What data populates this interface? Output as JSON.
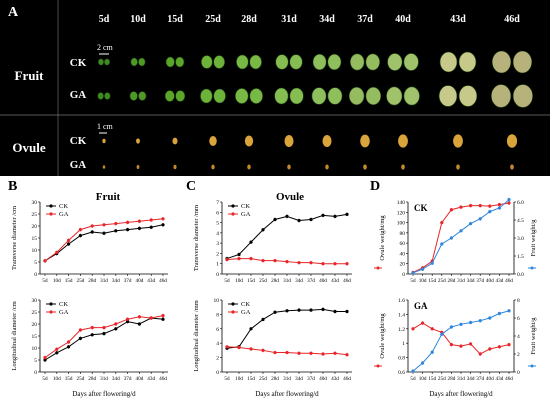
{
  "panelA": {
    "letter": "A",
    "days": [
      "5d",
      "10d",
      "15d",
      "25d",
      "28d",
      "31d",
      "34d",
      "37d",
      "40d",
      "43d",
      "46d"
    ],
    "section_fruit": "Fruit",
    "section_ovule": "Ovule",
    "row_labels": [
      "CK",
      "GA",
      "CK",
      "GA"
    ],
    "scale_fruit": "2 cm",
    "scale_ovule": "1 cm"
  },
  "panelB": {
    "letter": "B",
    "title": "Fruit"
  },
  "panelC": {
    "letter": "C",
    "title": "Ovule"
  },
  "panelD": {
    "letter": "D"
  },
  "colors": {
    "CK": "#000000",
    "GA": "#e8262a",
    "fruit_weight": "#2e86de"
  },
  "chart_data": [
    {
      "id": "B-top",
      "panel": "B",
      "type": "line",
      "categories": [
        "5d",
        "10d",
        "15d",
        "25d",
        "28d",
        "31d",
        "34d",
        "37d",
        "40d",
        "43d",
        "46d"
      ],
      "ylabel": "Transverse diameter /cm",
      "ylim": [
        0,
        30
      ],
      "yticks": [
        0,
        5,
        10,
        15,
        20,
        25,
        30
      ],
      "series": [
        {
          "name": "CK",
          "values": [
            5.5,
            8.5,
            12.5,
            16,
            17.5,
            17,
            18,
            18.5,
            19,
            19.5,
            20.5
          ]
        },
        {
          "name": "GA",
          "values": [
            5.5,
            9,
            14,
            18.5,
            20,
            20.5,
            21,
            21.5,
            22,
            22.5,
            23
          ]
        }
      ],
      "legend": "top-left"
    },
    {
      "id": "B-bottom",
      "panel": "B",
      "type": "line",
      "categories": [
        "5d",
        "10d",
        "15d",
        "25d",
        "28d",
        "31d",
        "34d",
        "37d",
        "40d",
        "43d",
        "46d"
      ],
      "xlabel": "Days after flowering/d",
      "ylabel": "Longitudinal diameter /cm",
      "ylim": [
        0,
        30
      ],
      "yticks": [
        0,
        5,
        10,
        15,
        20,
        25,
        30
      ],
      "series": [
        {
          "name": "CK",
          "values": [
            5,
            8,
            10.5,
            14,
            15.5,
            16,
            18,
            21,
            20,
            22.5,
            22
          ]
        },
        {
          "name": "GA",
          "values": [
            6,
            9.5,
            12.5,
            17.5,
            18.5,
            18.5,
            20,
            22,
            23,
            22.5,
            23.5
          ]
        }
      ],
      "legend": "top-left"
    },
    {
      "id": "C-top",
      "panel": "C",
      "type": "line",
      "categories": [
        "5d",
        "10d",
        "15d",
        "25d",
        "28d",
        "31d",
        "34d",
        "37d",
        "40d",
        "43d",
        "46d"
      ],
      "ylabel": "Transverse diameter /mm",
      "ylim": [
        0,
        7
      ],
      "yticks": [
        0,
        1,
        2,
        3,
        4,
        5,
        6,
        7
      ],
      "series": [
        {
          "name": "CK",
          "values": [
            1.5,
            1.9,
            3.1,
            4.3,
            5.3,
            5.6,
            5.2,
            5.3,
            5.7,
            5.6,
            5.8
          ]
        },
        {
          "name": "GA",
          "values": [
            1.4,
            1.5,
            1.5,
            1.3,
            1.3,
            1.2,
            1.1,
            1.1,
            1.0,
            1.0,
            1.0
          ]
        }
      ],
      "legend": "top-left"
    },
    {
      "id": "C-bottom",
      "panel": "C",
      "type": "line",
      "categories": [
        "5d",
        "10d",
        "15d",
        "25d",
        "28d",
        "31d",
        "34d",
        "37d",
        "40d",
        "43d",
        "46d"
      ],
      "xlabel": "Days after flowering/d",
      "ylabel": "Longitudinal diameter /mm",
      "ylim": [
        0,
        10
      ],
      "yticks": [
        0,
        2,
        4,
        6,
        8,
        10
      ],
      "series": [
        {
          "name": "CK",
          "values": [
            3.3,
            3.5,
            6.0,
            7.3,
            8.3,
            8.5,
            8.6,
            8.6,
            8.7,
            8.4,
            8.4
          ]
        },
        {
          "name": "GA",
          "values": [
            3.5,
            3.4,
            3.2,
            3.0,
            2.7,
            2.7,
            2.6,
            2.6,
            2.5,
            2.6,
            2.4
          ]
        }
      ],
      "legend": "top-left"
    },
    {
      "id": "D-top",
      "panel": "D",
      "type": "line",
      "title": "CK",
      "categories": [
        "5d",
        "10d",
        "15d",
        "25d",
        "28d",
        "31d",
        "34d",
        "37d",
        "40d",
        "43d",
        "46d"
      ],
      "ylabel": "Ovule weight/mg",
      "ylim": [
        0,
        140
      ],
      "yticks": [
        0,
        20,
        40,
        60,
        80,
        100,
        120,
        140
      ],
      "y2label": "Fruit weight/g",
      "y2lim": [
        0,
        6
      ],
      "y2ticks": [
        0.0,
        1.5,
        3.0,
        4.5,
        6.0
      ],
      "series": [
        {
          "name": "Ovule weight",
          "axis": "left",
          "color": "GA",
          "values": [
            3,
            12,
            25,
            100,
            125,
            130,
            133,
            133,
            132,
            135,
            138
          ]
        },
        {
          "name": "Fruit weight",
          "axis": "right",
          "color": "fruit_weight",
          "values": [
            0.1,
            0.4,
            0.9,
            2.5,
            3.0,
            3.6,
            4.2,
            4.6,
            5.2,
            5.5,
            6.2
          ]
        }
      ]
    },
    {
      "id": "D-bottom",
      "panel": "D",
      "type": "line",
      "title": "GA",
      "categories": [
        "5d",
        "10d",
        "15d",
        "25d",
        "28d",
        "31d",
        "34d",
        "37d",
        "40d",
        "43d",
        "46d"
      ],
      "xlabel": "Days after flowering/d",
      "ylabel": "Ovule weight/mg",
      "ylim": [
        0.6,
        1.6
      ],
      "yticks": [
        0.6,
        0.8,
        1.0,
        1.2,
        1.4,
        1.6
      ],
      "y2label": "Fruit weight/g",
      "y2lim": [
        0,
        8
      ],
      "y2ticks": [
        0,
        2,
        4,
        6,
        8
      ],
      "series": [
        {
          "name": "Ovule weight",
          "axis": "left",
          "color": "GA",
          "values": [
            1.2,
            1.28,
            1.2,
            1.15,
            0.98,
            0.96,
            0.99,
            0.85,
            0.92,
            0.95,
            0.98
          ]
        },
        {
          "name": "Fruit weight",
          "axis": "right",
          "color": "fruit_weight",
          "values": [
            0.1,
            1.0,
            2.2,
            4.2,
            5.0,
            5.3,
            5.5,
            5.7,
            6.0,
            6.5,
            6.8
          ]
        }
      ]
    }
  ]
}
